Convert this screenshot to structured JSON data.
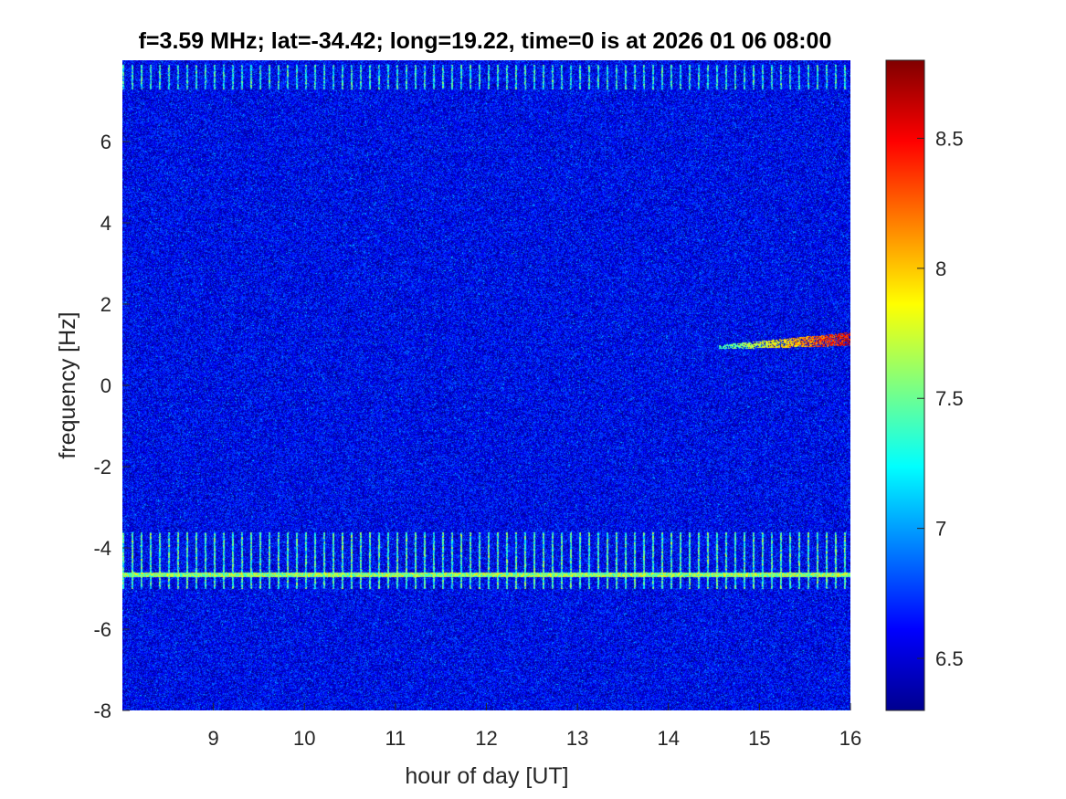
{
  "chart_data": {
    "type": "heatmap",
    "title": "f=3.59 MHz;  lat=-34.42; long=19.22, time=0 is at 2026 01 06 08:00",
    "xlabel": "hour of day [UT]",
    "ylabel": "frequency [Hz]",
    "xlim": [
      8,
      16
    ],
    "ylim": [
      -8,
      8
    ],
    "xticks": [
      "9",
      "10",
      "11",
      "12",
      "13",
      "14",
      "15",
      "16"
    ],
    "xtick_values": [
      9,
      10,
      11,
      12,
      13,
      14,
      15,
      16
    ],
    "yticks": [
      "-8",
      "-6",
      "-4",
      "-2",
      "0",
      "2",
      "4",
      "6"
    ],
    "ytick_values": [
      -8,
      -6,
      -4,
      -2,
      0,
      2,
      4,
      6
    ],
    "colorbar": {
      "range": [
        6.3,
        8.8
      ],
      "ticks": [
        "6.5",
        "7",
        "7.5",
        "8",
        "8.5"
      ],
      "tick_values": [
        6.5,
        7,
        7.5,
        8,
        8.5
      ],
      "colormap": "jet"
    },
    "features": [
      {
        "kind": "horizontal-band",
        "y_range": [
          -5.0,
          -3.6
        ],
        "note_value": "periodic vertical striations"
      },
      {
        "kind": "horizontal-line",
        "y": -4.65
      },
      {
        "kind": "horizontal-band",
        "y_range": [
          7.3,
          7.9
        ],
        "note_value": "periodic vertical striations"
      },
      {
        "kind": "doppler-trace",
        "x_range": [
          14.55,
          16.0
        ],
        "y_range": [
          0.95,
          1.15
        ]
      }
    ],
    "background_level": 6.55,
    "grid": false
  }
}
